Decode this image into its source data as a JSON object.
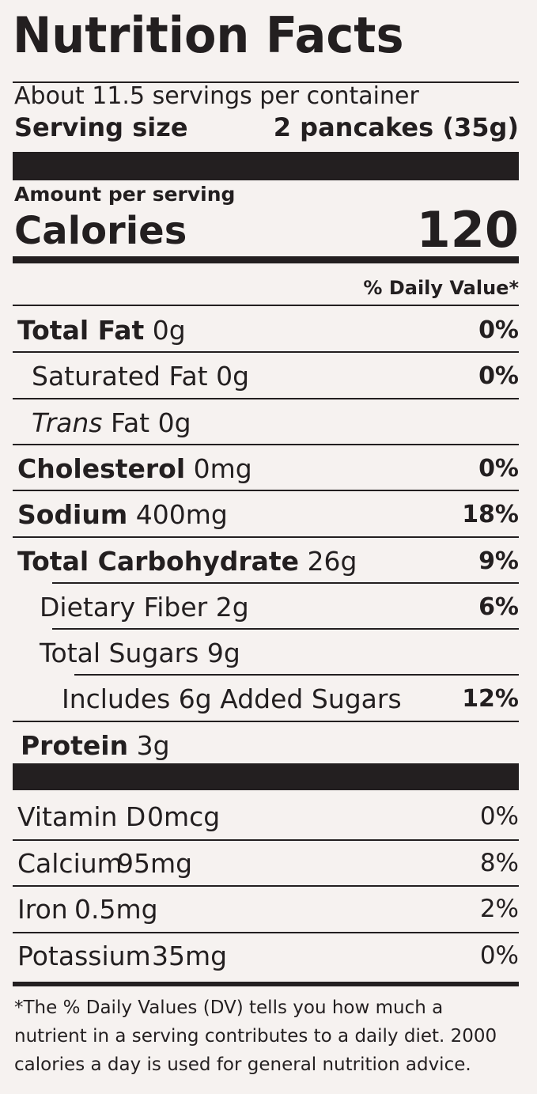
{
  "title": "Nutrition Facts",
  "servings": "About 11.5 servings per container",
  "serving_size": {
    "label": "Serving size",
    "value": "2 pancakes (35g)"
  },
  "amount_per_serving": "Amount per serving",
  "calories": {
    "label": "Calories",
    "value": "120"
  },
  "dv_header": "% Daily Value*",
  "nutrients": [
    {
      "name": "Total Fat",
      "amount": "0g",
      "dv": "0%"
    },
    {
      "name": "Saturated Fat",
      "amount": "0g",
      "dv": "0%"
    },
    {
      "name_italic": "Trans",
      "name": "Fat",
      "amount": "0g"
    },
    {
      "name": "Cholesterol",
      "amount": "0mg",
      "dv": "0%"
    },
    {
      "name": "Sodium",
      "amount": "400mg",
      "dv": "18%"
    },
    {
      "name": "Total Carbohydrate",
      "amount": "26g",
      "dv": "9%"
    },
    {
      "name": "Dietary Fiber",
      "amount": "2g",
      "dv": "6%"
    },
    {
      "name": "Total Sugars",
      "amount": "9g"
    },
    {
      "name": "Includes 6g Added Sugars",
      "dv": "12%"
    },
    {
      "name": "Protein",
      "amount": "3g"
    }
  ],
  "vitamins": [
    {
      "name": "Vitamin D",
      "amount": "0mcg",
      "dv": "0%"
    },
    {
      "name": "Calcium",
      "amount": "95mg",
      "dv": "8%"
    },
    {
      "name": "Iron",
      "amount": "0.5mg",
      "dv": "2%"
    },
    {
      "name": "Potassium",
      "amount": "35mg",
      "dv": "0%"
    }
  ],
  "footnote": [
    "*The % Daily Values (DV) tells you how much a",
    "nutrient in a serving contributes to a daily diet. 2000",
    "calories a day is used for general nutrition advice."
  ]
}
